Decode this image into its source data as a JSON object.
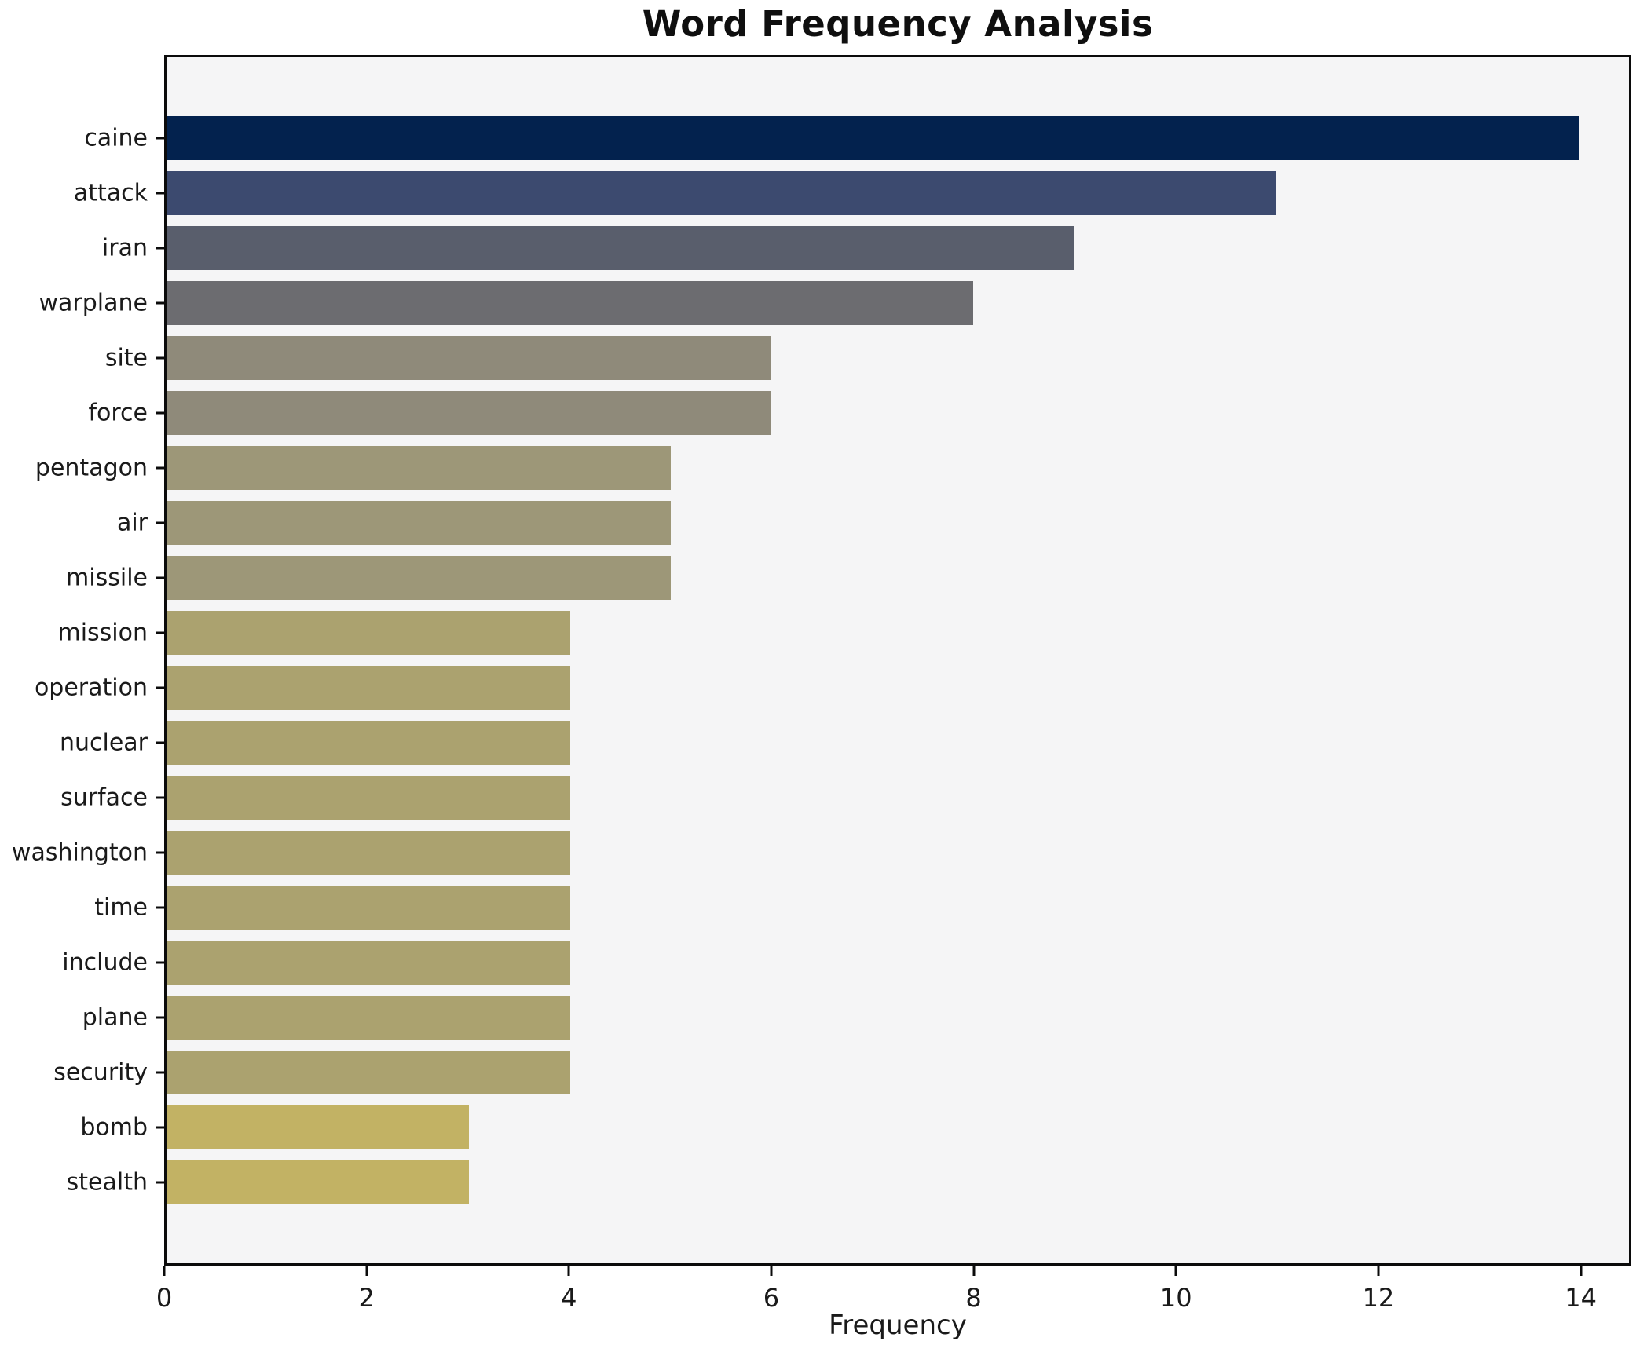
{
  "chart_data": {
    "type": "bar",
    "orientation": "horizontal",
    "title": "Word Frequency Analysis",
    "xlabel": "Frequency",
    "ylabel": "",
    "categories": [
      "caine",
      "attack",
      "iran",
      "warplane",
      "site",
      "force",
      "pentagon",
      "air",
      "missile",
      "mission",
      "operation",
      "nuclear",
      "surface",
      "washington",
      "time",
      "include",
      "plane",
      "security",
      "bomb",
      "stealth"
    ],
    "values": [
      14,
      11,
      9,
      8,
      6,
      6,
      5,
      5,
      5,
      4,
      4,
      4,
      4,
      4,
      4,
      4,
      4,
      4,
      3,
      3
    ],
    "bar_colors": [
      "#03224e",
      "#3c4a6f",
      "#595e6c",
      "#6c6c70",
      "#8f8a7a",
      "#8f8a7a",
      "#9d9778",
      "#9d9778",
      "#9d9778",
      "#aba26f",
      "#aba26f",
      "#aba26f",
      "#aba26f",
      "#aba26f",
      "#aba26f",
      "#aba26f",
      "#aba26f",
      "#aba26f",
      "#c2b264",
      "#c2b264"
    ],
    "xlim": [
      0,
      14.5
    ],
    "xticks": [
      0,
      2,
      4,
      6,
      8,
      10,
      12,
      14
    ],
    "grid": false,
    "legend": false,
    "plot_background": "#f5f5f6",
    "figure_background": "#ffffff",
    "spine_color": "#0b0b0b"
  }
}
